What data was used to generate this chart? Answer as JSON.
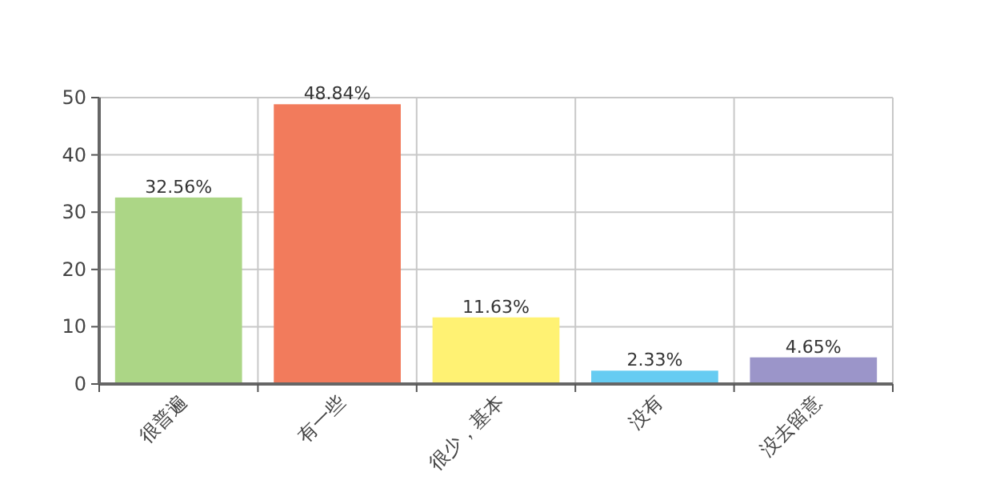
{
  "chart_data": {
    "type": "bar",
    "categories": [
      "很普遍",
      "有一些",
      "很少，基本",
      "没有",
      "没去留意"
    ],
    "values": [
      32.56,
      48.84,
      11.63,
      2.33,
      4.65
    ],
    "value_labels": [
      "32.56%",
      "48.84%",
      "11.63%",
      "2.33%",
      "4.65%"
    ],
    "colors": [
      "#acd686",
      "#f27b5c",
      "#fff273",
      "#66ccf2",
      "#9b95c9"
    ],
    "ylim": [
      0,
      50
    ],
    "yticks": [
      0,
      10,
      20,
      30,
      40,
      50
    ],
    "grid": true
  }
}
